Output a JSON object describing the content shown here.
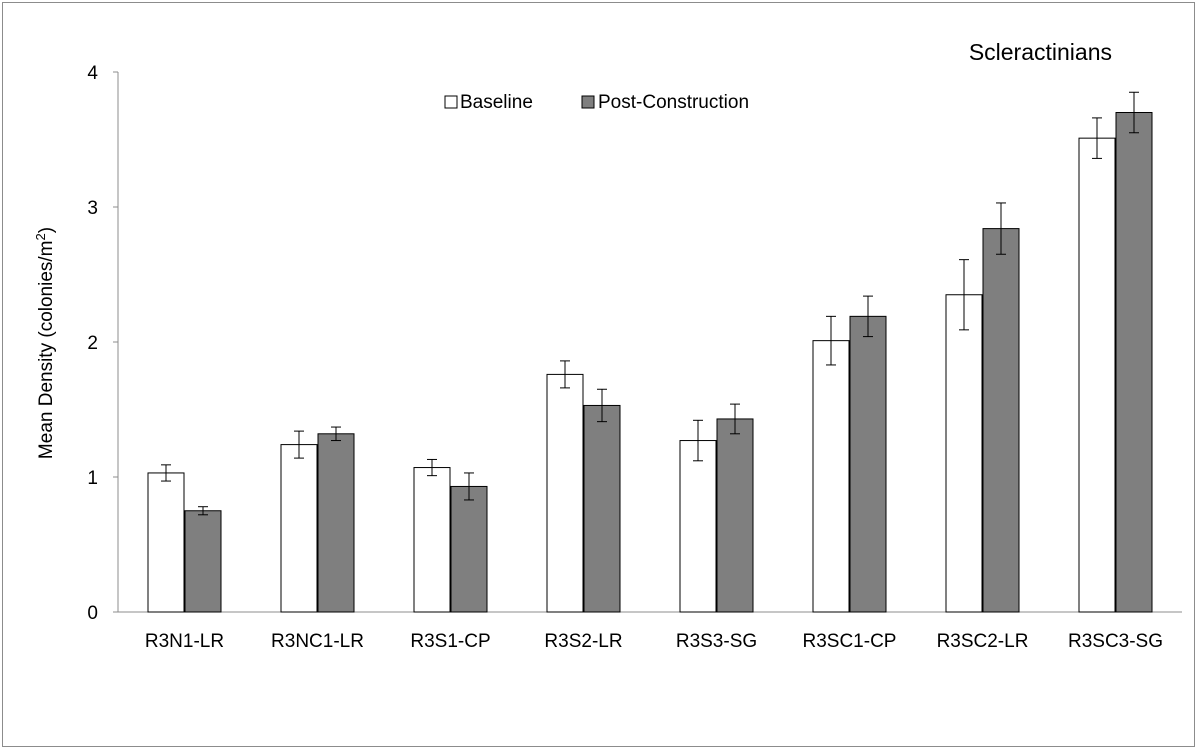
{
  "chart_data": {
    "type": "bar",
    "title": "Scleractinians",
    "ylabel_main": "Mean Density (colonies/m",
    "ylabel_sup": "2",
    "ylabel_end": ")",
    "xlabel": "",
    "ylim": [
      0,
      4
    ],
    "yticks": [
      0,
      1,
      2,
      3,
      4
    ],
    "grid": false,
    "legend_position": "top-center",
    "categories": [
      "R3N1-LR",
      "R3NC1-LR",
      "R3S1-CP",
      "R3S2-LR",
      "R3S3-SG",
      "R3SC1-CP",
      "R3SC2-LR",
      "R3SC3-SG"
    ],
    "series": [
      {
        "name": "Baseline",
        "color": "#ffffff",
        "values": [
          1.03,
          1.24,
          1.07,
          1.76,
          1.27,
          2.01,
          2.35,
          3.51
        ],
        "errors": [
          0.06,
          0.1,
          0.06,
          0.1,
          0.15,
          0.18,
          0.26,
          0.15
        ]
      },
      {
        "name": "Post-Construction",
        "color": "#7f7f7f",
        "values": [
          0.75,
          1.32,
          0.93,
          1.53,
          1.43,
          2.19,
          2.84,
          3.7
        ],
        "errors": [
          0.03,
          0.05,
          0.1,
          0.12,
          0.11,
          0.15,
          0.19,
          0.15
        ]
      }
    ]
  }
}
